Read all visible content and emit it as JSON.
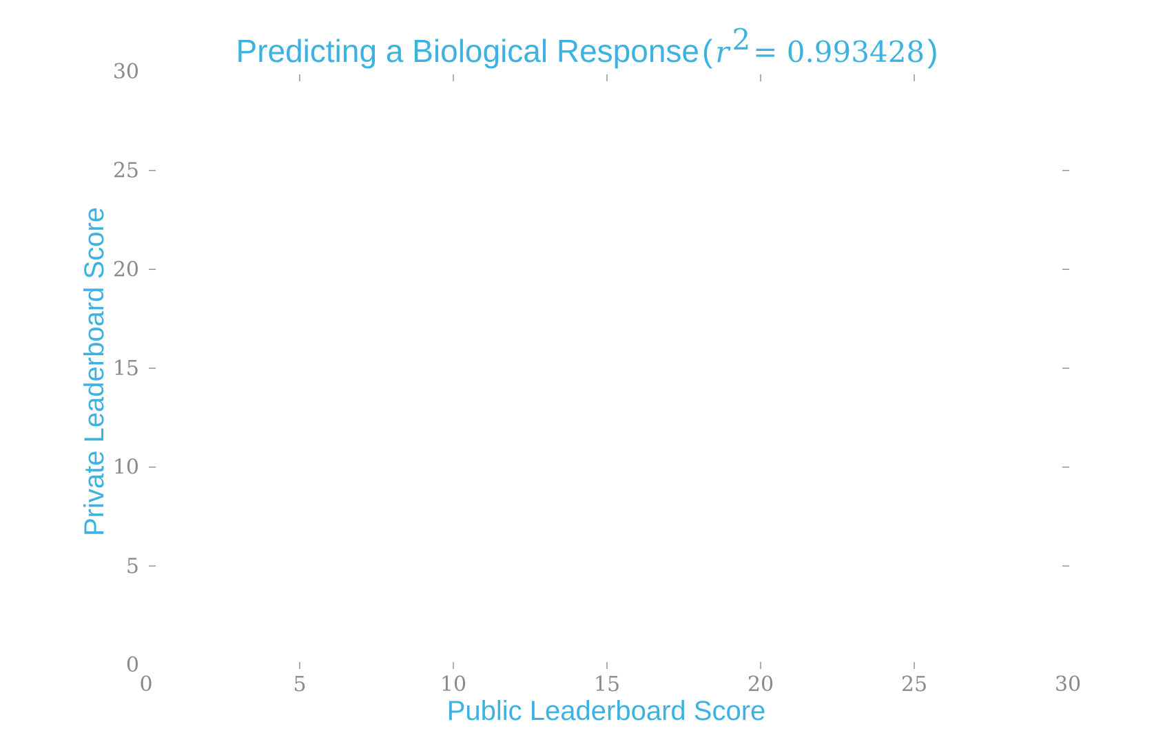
{
  "chart_data": {
    "type": "scatter",
    "title": "Predicting a Biological Response",
    "title_stat": {
      "symbol": "r",
      "exponent": "2",
      "relation": "=",
      "value": "0.993428"
    },
    "xlabel": "Public Leaderboard Score",
    "ylabel": "Private Leaderboard Score",
    "xlim": [
      0,
      30
    ],
    "ylim": [
      0,
      30
    ],
    "xticks": [
      0,
      5,
      10,
      15,
      20,
      25,
      30
    ],
    "yticks": [
      0,
      5,
      10,
      15,
      20,
      25,
      30
    ],
    "series": [],
    "grid": false,
    "legend": "none",
    "colors": {
      "accent": "#3bb2e0",
      "tick": "#8a8a8a",
      "background": "#ffffff"
    }
  }
}
